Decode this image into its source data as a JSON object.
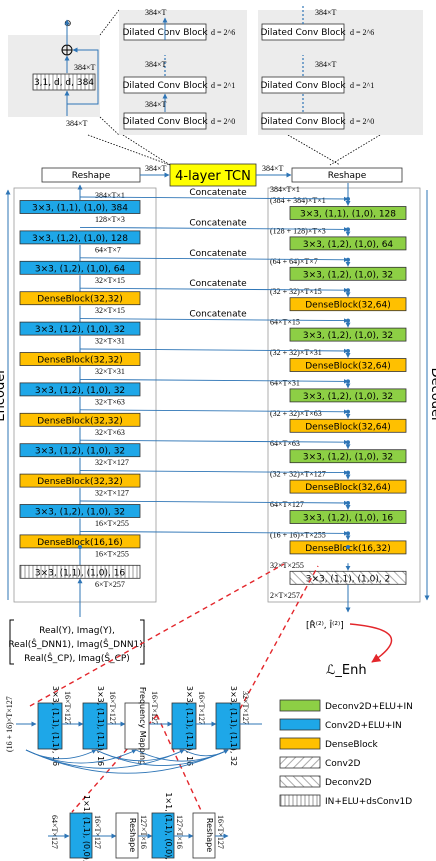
{
  "colors": {
    "green": "#8dcf45",
    "blue": "#1ea7e8",
    "orange": "#ffc000",
    "yellow": "#ffff00",
    "connector": "#2e75b6",
    "red": "#e3262b",
    "panel": "#ececec"
  },
  "tcn": {
    "add_block_label": "3,1, d, d, 384",
    "dim_top": "384×T",
    "dim_bottom": "384×T",
    "block_label": "Dilated Conv Block",
    "mid": {
      "d_top": "d = 2^6",
      "d_mid": "d = 2^1",
      "d_bot": "d = 2^0",
      "dims": [
        "384×T",
        "384×T",
        "384×T"
      ]
    },
    "right": {
      "d_top": "d = 2^6",
      "d_mid": "d = 2^1",
      "d_bot": "d = 2^0",
      "dims": [
        "384×T",
        "384×T"
      ]
    },
    "name": "4-layer TCN",
    "reshape_left": "Reshape",
    "reshape_right": "Reshape",
    "dim_in": "384×T",
    "dim_out": "384×T"
  },
  "encoder": {
    "title": "Encoder",
    "blocks": [
      {
        "label": "3×3, (1,1), (1,0), 384",
        "kind": "conv"
      },
      {
        "label": "3×3, (1,2), (1,0), 128",
        "kind": "conv"
      },
      {
        "label": "3×3, (1,2), (1,0), 64",
        "kind": "conv"
      },
      {
        "label": "DenseBlock(32,32)",
        "kind": "dense"
      },
      {
        "label": "3×3, (1,2), (1,0), 32",
        "kind": "conv"
      },
      {
        "label": "DenseBlock(32,32)",
        "kind": "dense"
      },
      {
        "label": "3×3, (1,2), (1,0), 32",
        "kind": "conv"
      },
      {
        "label": "DenseBlock(32,32)",
        "kind": "dense"
      },
      {
        "label": "3×3, (1,2), (1,0), 32",
        "kind": "conv"
      },
      {
        "label": "DenseBlock(32,32)",
        "kind": "dense"
      },
      {
        "label": "3×3, (1,2), (1,0), 32",
        "kind": "conv"
      },
      {
        "label": "DenseBlock(16,16)",
        "kind": "dense"
      },
      {
        "label": "3×3, (1,1), (1,0), 16",
        "kind": "ds"
      }
    ],
    "dims": [
      "384×T×1",
      "128×T×3",
      "64×T×7",
      "32×T×15",
      "32×T×15",
      "32×T×31",
      "32×T×31",
      "32×T×63",
      "32×T×63",
      "32×T×127",
      "32×T×127",
      "16×T×255",
      "16×T×255",
      "6×T×257"
    ]
  },
  "decoder": {
    "title": "Decoder",
    "blocks": [
      {
        "label": "3×3, (1,1), (1,0), 128",
        "kind": "deconv"
      },
      {
        "label": "3×3, (1,2), (1,0), 64",
        "kind": "deconv"
      },
      {
        "label": "3×3, (1,2), (1,0), 32",
        "kind": "deconv"
      },
      {
        "label": "DenseBlock(32,64)",
        "kind": "dense"
      },
      {
        "label": "3×3, (1,2), (1,0), 32",
        "kind": "deconv"
      },
      {
        "label": "DenseBlock(32,64)",
        "kind": "dense"
      },
      {
        "label": "3×3, (1,2), (1,0), 32",
        "kind": "deconv"
      },
      {
        "label": "DenseBlock(32,64)",
        "kind": "dense"
      },
      {
        "label": "3×3, (1,2), (1,0), 32",
        "kind": "deconv"
      },
      {
        "label": "DenseBlock(32,64)",
        "kind": "dense"
      },
      {
        "label": "3×3, (1,2), (1,0), 16",
        "kind": "deconv"
      },
      {
        "label": "DenseBlock(16,32)",
        "kind": "dense"
      },
      {
        "label": "3×3, (1,1), (1,0), 2",
        "kind": "ddeconv"
      }
    ],
    "dims": [
      "384×T×1",
      "(384 + 384)×T×1",
      "(128 + 128)×T×3",
      "(64 + 64)×T×7",
      "(32 + 32)×T×15",
      "64×T×15",
      "(32 + 32)×T×31",
      "64×T×31",
      "(32 + 32)×T×63",
      "64×T×63",
      "(32 + 32)×T×127",
      "64×T×127",
      "(16 + 16)×T×255",
      "32×T×255",
      "2×T×257"
    ],
    "concat": "Concatenate"
  },
  "input_text": {
    "line1": "Real(Y), Imag(Y),",
    "line2": "Real(Ŝ_DNN1), Imag(Ŝ_DNN1),",
    "line3": "Real(Ŝ_CP), Imag(Ŝ_CP)"
  },
  "output": {
    "label": "[R̂⁽²⁾, Î⁽²⁾]",
    "loss": "ℒ_Enh"
  },
  "dense": {
    "input_dim": "(16 + 16)×T×127",
    "blocks": [
      "3×3, (1,1), (1,1), 16",
      "3×3, (1,1), (1,1), 16",
      "Frequency Mapping",
      "3×3, (1,1), (1,1), 16",
      "3×3, (1,1), (1,1), 32"
    ],
    "dims": [
      "16×T×127",
      "16×T×127",
      "16×T×127",
      "16×T×127",
      "32×T×127"
    ],
    "freq": {
      "blocks": [
        "1×1, (1,1), (0,0), 16",
        "Reshape",
        "1×1, (1,1), (0,0), 127",
        "Reshape"
      ],
      "dims": [
        "64×T×127",
        "16×T×127",
        "127×T×16",
        "127×T×16",
        "16×T×127"
      ]
    }
  },
  "legend": [
    {
      "label": "Deconv2D+ELU+IN",
      "kind": "deconv"
    },
    {
      "label": "Conv2D+ELU+IN",
      "kind": "conv"
    },
    {
      "label": "DenseBlock",
      "kind": "dense"
    },
    {
      "label": "Conv2D",
      "kind": "conv2d"
    },
    {
      "label": "Deconv2D",
      "kind": "deconv2d"
    },
    {
      "label": "IN+ELU+dsConv1D",
      "kind": "ds"
    }
  ]
}
